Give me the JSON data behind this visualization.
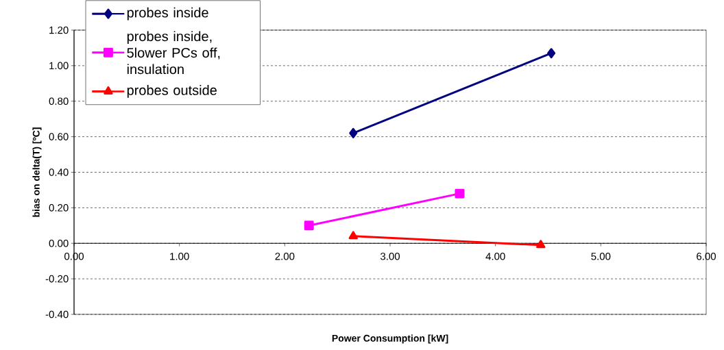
{
  "chart_data": {
    "type": "line",
    "xlabel": "Power Consumption [kW]",
    "ylabel": "bias on delta(T)  [ºC]",
    "xlim": [
      0,
      6
    ],
    "xticks": [
      {
        "value": 0,
        "label": "0.00"
      },
      {
        "value": 1,
        "label": "1.00"
      },
      {
        "value": 2,
        "label": "2.00"
      },
      {
        "value": 3,
        "label": "3.00"
      },
      {
        "value": 4,
        "label": "4.00"
      },
      {
        "value": 5,
        "label": "5.00"
      },
      {
        "value": 6,
        "label": "6.00"
      }
    ],
    "ylim": [
      -0.4,
      1.2
    ],
    "yticks": [
      {
        "value": -0.4,
        "label": "-0.40"
      },
      {
        "value": -0.2,
        "label": "-0.20"
      },
      {
        "value": 0,
        "label": "0.00"
      },
      {
        "value": 0.2,
        "label": "0.20"
      },
      {
        "value": 0.4,
        "label": "0.40"
      },
      {
        "value": 0.6,
        "label": "0.60"
      },
      {
        "value": 0.8,
        "label": "0.80"
      },
      {
        "value": 1.0,
        "label": "1.00"
      },
      {
        "value": 1.2,
        "label": "1.20"
      }
    ],
    "grid": "y",
    "legend": "top left",
    "line_style": "solid",
    "series": [
      {
        "name": "probes inside",
        "color": "#000080",
        "marker": "diamond",
        "x": [
          2.65,
          4.53
        ],
        "values": [
          0.62,
          1.07
        ]
      },
      {
        "name": "probes inside, 5lower PCs off, insulation",
        "color": "#ff00ff",
        "marker": "square",
        "x": [
          2.23,
          3.66
        ],
        "values": [
          0.1,
          0.28
        ]
      },
      {
        "name": "probes outside",
        "color": "#ff0000",
        "marker": "triangle",
        "x": [
          2.65,
          4.43
        ],
        "values": [
          0.04,
          -0.01
        ]
      }
    ]
  }
}
